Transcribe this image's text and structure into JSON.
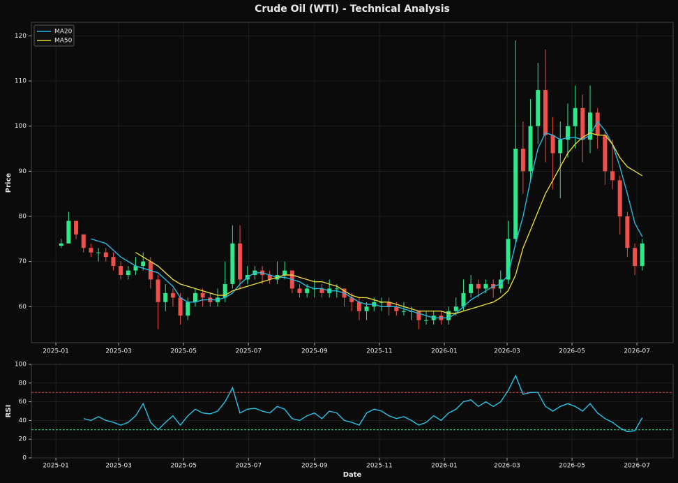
{
  "chart_data": [
    {
      "type": "candlestick",
      "title": "Crude Oil (WTI) - Technical Analysis",
      "ylabel": "Price",
      "up_color": "#2ee88a",
      "down_color": "#f0504a",
      "grid": true,
      "legend": "upper left",
      "xlim": [
        "2024-12-09",
        "2026-08-04"
      ],
      "ylim": [
        52,
        123
      ],
      "yticks": [
        60,
        70,
        80,
        90,
        100,
        110,
        120
      ],
      "xticks": [
        {
          "value": "2025-01-01",
          "label": "2025-01"
        },
        {
          "value": "2025-03-01",
          "label": "2025-03"
        },
        {
          "value": "2025-05-01",
          "label": "2025-05"
        },
        {
          "value": "2025-07-01",
          "label": "2025-07"
        },
        {
          "value": "2025-09-01",
          "label": "2025-09"
        },
        {
          "value": "2025-11-01",
          "label": "2025-11"
        },
        {
          "value": "2026-01-01",
          "label": "2026-01"
        },
        {
          "value": "2026-03-01",
          "label": "2026-03"
        },
        {
          "value": "2026-05-01",
          "label": "2026-05"
        },
        {
          "value": "2026-07-01",
          "label": "2026-07"
        }
      ],
      "x": [
        "2025-01-06",
        "2025-01-13",
        "2025-01-20",
        "2025-01-27",
        "2025-02-03",
        "2025-02-10",
        "2025-02-17",
        "2025-02-24",
        "2025-03-03",
        "2025-03-10",
        "2025-03-17",
        "2025-03-24",
        "2025-03-31",
        "2025-04-07",
        "2025-04-14",
        "2025-04-21",
        "2025-04-28",
        "2025-05-05",
        "2025-05-12",
        "2025-05-19",
        "2025-05-26",
        "2025-06-02",
        "2025-06-09",
        "2025-06-16",
        "2025-06-23",
        "2025-06-30",
        "2025-07-07",
        "2025-07-14",
        "2025-07-21",
        "2025-07-28",
        "2025-08-04",
        "2025-08-11",
        "2025-08-18",
        "2025-08-25",
        "2025-09-01",
        "2025-09-08",
        "2025-09-15",
        "2025-09-22",
        "2025-09-29",
        "2025-10-06",
        "2025-10-13",
        "2025-10-20",
        "2025-10-27",
        "2025-11-03",
        "2025-11-10",
        "2025-11-17",
        "2025-11-24",
        "2025-12-01",
        "2025-12-08",
        "2025-12-15",
        "2025-12-22",
        "2025-12-29",
        "2026-01-05",
        "2026-01-12",
        "2026-01-19",
        "2026-01-26",
        "2026-02-02",
        "2026-02-09",
        "2026-02-16",
        "2026-02-23",
        "2026-03-02",
        "2026-03-09",
        "2026-03-16",
        "2026-03-23",
        "2026-03-30",
        "2026-04-06",
        "2026-04-13",
        "2026-04-20",
        "2026-04-27",
        "2026-05-04",
        "2026-05-11",
        "2026-05-18",
        "2026-05-25",
        "2026-06-01",
        "2026-06-08",
        "2026-06-15",
        "2026-06-22",
        "2026-06-29",
        "2026-07-06"
      ],
      "open": [
        73.5,
        74,
        79,
        76,
        73,
        72,
        72,
        71,
        69,
        67,
        68,
        69,
        70,
        66,
        61,
        63,
        62,
        58,
        61,
        63,
        62,
        61,
        62,
        65,
        74,
        66,
        67,
        68,
        67,
        66,
        67,
        68,
        64,
        63,
        64,
        64,
        63,
        64,
        64,
        62,
        61,
        59,
        60,
        61,
        61,
        60,
        59,
        59,
        59,
        57,
        57,
        58,
        57,
        59,
        60,
        63,
        65,
        64,
        65,
        64,
        66,
        75,
        95,
        90,
        100,
        108,
        98,
        94,
        97,
        100,
        104,
        97,
        103,
        98,
        90,
        88,
        80,
        73,
        69
      ],
      "high": [
        75,
        81,
        79,
        76,
        74,
        73,
        73,
        72,
        70,
        69,
        71,
        72,
        71,
        67,
        65,
        64,
        63,
        62,
        64,
        64,
        63,
        64,
        70,
        78,
        78,
        69,
        69,
        69,
        68,
        70,
        70,
        68,
        65,
        65,
        66,
        65,
        66,
        65,
        64,
        63,
        62,
        61,
        62,
        62,
        62,
        61,
        61,
        60,
        59,
        59,
        59,
        59,
        60,
        62,
        66,
        67,
        66,
        66,
        66,
        68,
        79,
        119,
        101,
        106,
        114,
        117,
        102,
        101,
        105,
        109,
        107,
        109,
        104,
        99,
        97,
        89,
        81,
        74,
        75
      ],
      "low": [
        73,
        74,
        75,
        72,
        71,
        70,
        70,
        68,
        66,
        66,
        67,
        68,
        64,
        55,
        59,
        60,
        56,
        57,
        60,
        60,
        60,
        60,
        61,
        64,
        64,
        65,
        66,
        65,
        65,
        65,
        66,
        63,
        62,
        62,
        62,
        62,
        62,
        62,
        60,
        59,
        57,
        57,
        59,
        59,
        58,
        58,
        58,
        57,
        55,
        56,
        56,
        56,
        56,
        58,
        59,
        62,
        62,
        63,
        62,
        63,
        65,
        74,
        85,
        88,
        96,
        92,
        86,
        84,
        93,
        95,
        92,
        94,
        95,
        87,
        86,
        76,
        71,
        67,
        68
      ],
      "close": [
        74,
        79,
        76,
        73,
        72,
        72,
        71,
        69,
        67,
        68,
        69,
        70,
        66,
        61,
        63,
        62,
        58,
        61,
        63,
        62,
        61,
        62,
        65,
        74,
        66,
        67,
        68,
        67,
        66,
        67,
        68,
        64,
        63,
        64,
        64,
        63,
        64,
        64,
        62,
        61,
        59,
        60,
        61,
        61,
        60,
        59,
        59,
        59,
        57,
        57,
        58,
        57,
        59,
        60,
        63,
        65,
        64,
        65,
        64,
        66,
        75,
        95,
        90,
        100,
        108,
        98,
        94,
        97,
        100,
        104,
        97,
        103,
        98,
        90,
        88,
        80,
        73,
        69,
        74
      ],
      "series": [
        {
          "name": "MA20",
          "color": "#29b8e0",
          "values": [
            null,
            null,
            null,
            null,
            75,
            74.5,
            74,
            72.5,
            71,
            70,
            69,
            68.5,
            68,
            67.5,
            66,
            64.5,
            62,
            61,
            61,
            61.5,
            61.5,
            61.5,
            62,
            63,
            65,
            66.5,
            67.5,
            67.5,
            67,
            66.5,
            66.5,
            66,
            65.5,
            64.5,
            64,
            64,
            63.5,
            63.5,
            63,
            62,
            61,
            60.5,
            60.5,
            60,
            60,
            60,
            59.5,
            59,
            58.5,
            58,
            57.5,
            57.5,
            57.5,
            58.5,
            60,
            61.5,
            62.5,
            63.5,
            64.5,
            65,
            67,
            74,
            80,
            88,
            95,
            98.5,
            98,
            97,
            97.5,
            97.5,
            97,
            98,
            101,
            99,
            96,
            91,
            85,
            78.5,
            75.5
          ]
        },
        {
          "name": "MA50",
          "color": "#e6d83a",
          "values": [
            null,
            null,
            null,
            null,
            null,
            null,
            null,
            null,
            null,
            null,
            72,
            71,
            70,
            69,
            67.5,
            66,
            65,
            64.5,
            64,
            63.5,
            63,
            62.5,
            62.5,
            63.5,
            64,
            64.5,
            65,
            65.5,
            66,
            66.5,
            67,
            67,
            66.5,
            66,
            65.5,
            65.5,
            65,
            64.5,
            63.5,
            62.5,
            62,
            62,
            61.5,
            61,
            61,
            60.5,
            60,
            59.5,
            59,
            59,
            59,
            59,
            58.5,
            58.5,
            59,
            59.5,
            60,
            60.5,
            61,
            62,
            63.5,
            67,
            73,
            77,
            81,
            85,
            88,
            91,
            94,
            96,
            97.5,
            98.5,
            98,
            98,
            96,
            93,
            91,
            90,
            89
          ]
        }
      ]
    },
    {
      "type": "line",
      "ylabel": "RSI",
      "xlabel": "Date",
      "grid": true,
      "xlim": [
        "2024-12-09",
        "2026-08-04"
      ],
      "ylim": [
        0,
        100
      ],
      "yticks": [
        0,
        20,
        40,
        60,
        80,
        100
      ],
      "xticks": [
        {
          "value": "2025-01-01",
          "label": "2025-01"
        },
        {
          "value": "2025-03-01",
          "label": "2025-03"
        },
        {
          "value": "2025-05-01",
          "label": "2025-05"
        },
        {
          "value": "2025-07-01",
          "label": "2025-07"
        },
        {
          "value": "2025-09-01",
          "label": "2025-09"
        },
        {
          "value": "2025-11-01",
          "label": "2025-11"
        },
        {
          "value": "2026-01-01",
          "label": "2026-01"
        },
        {
          "value": "2026-03-01",
          "label": "2026-03"
        },
        {
          "value": "2026-05-01",
          "label": "2026-05"
        },
        {
          "value": "2026-07-01",
          "label": "2026-07"
        }
      ],
      "hlines": [
        {
          "value": 70,
          "color": "#e0453f"
        },
        {
          "value": 30,
          "color": "#2ee88a"
        }
      ],
      "x": [
        "2025-01-06",
        "2025-01-13",
        "2025-01-20",
        "2025-01-27",
        "2025-02-03",
        "2025-02-10",
        "2025-02-17",
        "2025-02-24",
        "2025-03-03",
        "2025-03-10",
        "2025-03-17",
        "2025-03-24",
        "2025-03-31",
        "2025-04-07",
        "2025-04-14",
        "2025-04-21",
        "2025-04-28",
        "2025-05-05",
        "2025-05-12",
        "2025-05-19",
        "2025-05-26",
        "2025-06-02",
        "2025-06-09",
        "2025-06-16",
        "2025-06-23",
        "2025-06-30",
        "2025-07-07",
        "2025-07-14",
        "2025-07-21",
        "2025-07-28",
        "2025-08-04",
        "2025-08-11",
        "2025-08-18",
        "2025-08-25",
        "2025-09-01",
        "2025-09-08",
        "2025-09-15",
        "2025-09-22",
        "2025-09-29",
        "2025-10-06",
        "2025-10-13",
        "2025-10-20",
        "2025-10-27",
        "2025-11-03",
        "2025-11-10",
        "2025-11-17",
        "2025-11-24",
        "2025-12-01",
        "2025-12-08",
        "2025-12-15",
        "2025-12-22",
        "2025-12-29",
        "2026-01-05",
        "2026-01-12",
        "2026-01-19",
        "2026-01-26",
        "2026-02-02",
        "2026-02-09",
        "2026-02-16",
        "2026-02-23",
        "2026-03-02",
        "2026-03-09",
        "2026-03-16",
        "2026-03-23",
        "2026-03-30",
        "2026-04-06",
        "2026-04-13",
        "2026-04-20",
        "2026-04-27",
        "2026-05-04",
        "2026-05-11",
        "2026-05-18",
        "2026-05-25",
        "2026-06-01",
        "2026-06-08",
        "2026-06-15",
        "2026-06-22",
        "2026-06-29",
        "2026-07-06"
      ],
      "series": [
        {
          "color": "#29c4e8",
          "values": [
            null,
            null,
            null,
            42,
            40,
            44,
            40,
            38,
            35,
            38,
            45,
            58,
            38,
            30,
            38,
            45,
            35,
            45,
            52,
            48,
            47,
            50,
            60,
            75,
            48,
            52,
            53,
            50,
            48,
            55,
            52,
            42,
            40,
            45,
            48,
            42,
            50,
            48,
            40,
            38,
            35,
            48,
            52,
            50,
            45,
            42,
            44,
            40,
            35,
            38,
            45,
            40,
            48,
            52,
            60,
            62,
            55,
            60,
            55,
            60,
            72,
            88,
            68,
            70,
            70,
            55,
            50,
            55,
            58,
            55,
            50,
            58,
            48,
            42,
            38,
            32,
            28,
            29,
            43
          ]
        }
      ]
    }
  ]
}
